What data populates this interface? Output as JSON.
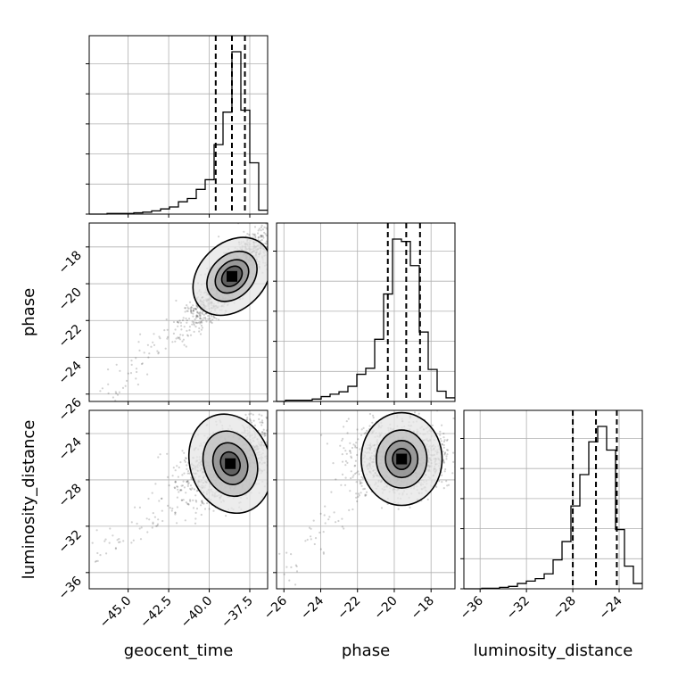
{
  "chart_data": {
    "type": "corner",
    "parameters": [
      "geocent_time",
      "phase",
      "luminosity_distance"
    ],
    "axis_labels": {
      "geocent_time": "geocent_time",
      "phase": "phase",
      "luminosity_distance": "luminosity_distance"
    },
    "ranges": {
      "geocent_time": [
        -47.4,
        -36.4
      ],
      "phase": [
        -26.4,
        -16.7
      ],
      "luminosity_distance": [
        -37.4,
        -22.0
      ]
    },
    "ticks": {
      "geocent_time": [
        -45.0,
        -42.5,
        -40.0,
        -37.5
      ],
      "phase": [
        -26,
        -24,
        -22,
        -20,
        -18
      ],
      "luminosity_distance": [
        -36,
        -32,
        -28,
        -24
      ]
    },
    "tick_labels": {
      "geocent_time": [
        "−45.0",
        "−42.5",
        "−40.0",
        "−37.5"
      ],
      "phase": [
        "−26",
        "−24",
        "−22",
        "−20",
        "−18"
      ],
      "luminosity_distance": [
        "−36",
        "−32",
        "−28",
        "−24"
      ]
    },
    "quantiles": {
      "geocent_time": [
        -39.6,
        -38.6,
        -37.8
      ],
      "phase": [
        -20.35,
        -19.35,
        -18.6
      ],
      "luminosity_distance": [
        -28.0,
        -26.0,
        -24.2
      ]
    },
    "histograms": {
      "geocent_time": {
        "edges": [
          -47.4,
          -46.85,
          -46.3,
          -45.75,
          -45.2,
          -44.65,
          -44.1,
          -43.55,
          -43.0,
          -42.45,
          -41.9,
          -41.35,
          -40.8,
          -40.25,
          -39.7,
          -39.15,
          -38.6,
          -38.05,
          -37.5,
          -36.95,
          -36.4
        ],
        "counts": [
          0,
          0,
          1,
          1,
          1,
          2,
          3,
          5,
          8,
          11,
          19,
          24,
          38,
          53,
          107,
          157,
          250,
          160,
          79,
          6
        ]
      },
      "phase": {
        "edges": [
          -26.4,
          -25.915,
          -25.43,
          -24.945,
          -24.46,
          -23.975,
          -23.49,
          -23.005,
          -22.52,
          -22.035,
          -21.55,
          -21.065,
          -20.58,
          -20.095,
          -19.61,
          -19.125,
          -18.64,
          -18.155,
          -17.67,
          -17.185,
          -16.7
        ],
        "counts": [
          0,
          2,
          2,
          2,
          4,
          8,
          12,
          16,
          25,
          45,
          55,
          103,
          178,
          269,
          265,
          225,
          115,
          53,
          17,
          6
        ]
      },
      "luminosity_distance": {
        "edges": [
          -37.4,
          -36.63,
          -35.86,
          -35.09,
          -34.32,
          -33.55,
          -32.78,
          -32.01,
          -31.24,
          -30.47,
          -29.7,
          -28.93,
          -28.16,
          -27.39,
          -26.62,
          -25.85,
          -25.08,
          -24.31,
          -23.54,
          -22.77,
          -22.0
        ],
        "counts": [
          0,
          0,
          1,
          1,
          3,
          5,
          11,
          16,
          21,
          31,
          60,
          98,
          172,
          237,
          305,
          337,
          288,
          123,
          47,
          11
        ]
      }
    },
    "joint": [
      {
        "x": "geocent_time",
        "y": "phase",
        "center": [
          -38.6,
          -19.6
        ],
        "axes": [
          1.3,
          0.85
        ],
        "rotation_deg": 45,
        "contour_scales": [
          0.55,
          0.9,
          1.35,
          2.1
        ],
        "scatter_spread": [
          3.2,
          2.0
        ],
        "tail": [
          [
            -46.0,
            -25.8
          ],
          [
            -44.8,
            -24.6
          ],
          [
            -43.5,
            -23.6
          ],
          [
            -42.3,
            -22.8
          ],
          [
            -41.2,
            -22.0
          ]
        ]
      },
      {
        "x": "geocent_time",
        "y": "luminosity_distance",
        "center": [
          -38.7,
          -26.6
        ],
        "axes": [
          1.3,
          2.3
        ],
        "rotation_deg": 20,
        "contour_scales": [
          0.45,
          0.8,
          1.25,
          1.9
        ],
        "scatter_spread": [
          3.0,
          3.6
        ],
        "tail": [
          [
            -46.8,
            -34.5
          ],
          [
            -45.5,
            -33.0
          ],
          [
            -44.0,
            -31.8
          ],
          [
            -42.8,
            -30.5
          ]
        ]
      },
      {
        "x": "phase",
        "y": "luminosity_distance",
        "center": [
          -19.6,
          -26.2
        ],
        "axes": [
          1.1,
          2.0
        ],
        "rotation_deg": 0,
        "contour_scales": [
          0.45,
          0.8,
          1.25,
          2.0
        ],
        "scatter_spread": [
          2.2,
          3.2
        ],
        "tail": [
          [
            -25.8,
            -35.5
          ],
          [
            -24.3,
            -33.2
          ],
          [
            -23.0,
            -31.2
          ],
          [
            -21.8,
            -29.5
          ]
        ]
      }
    ],
    "grid": true,
    "legend": "none"
  }
}
